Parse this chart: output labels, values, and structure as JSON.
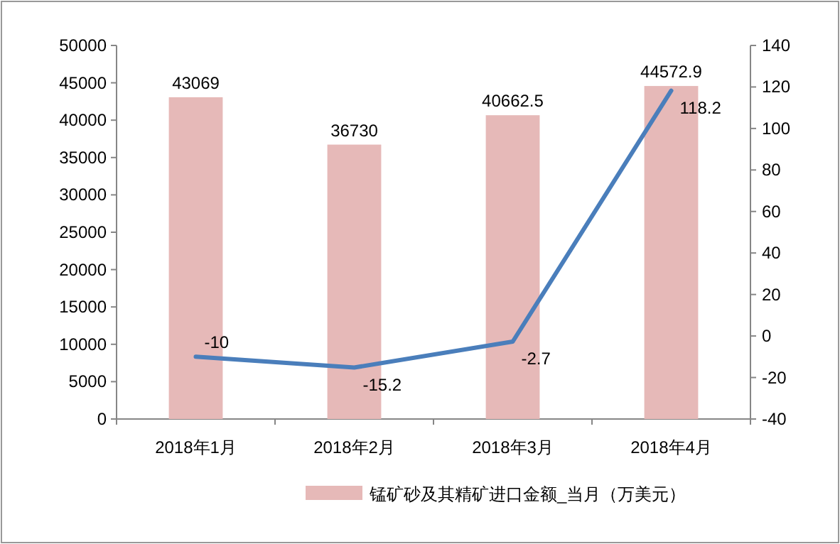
{
  "chart_data": {
    "type": "bar",
    "categories": [
      "2018年1月",
      "2018年2月",
      "2018年3月",
      "2018年4月"
    ],
    "series": [
      {
        "name": "锰矿砂及其精矿进口金额_当月（万美元）",
        "color": "#e6b9b8",
        "values": [
          43069,
          36730,
          40662.5,
          44572.9
        ]
      },
      {
        "type": "line",
        "axis": "y2",
        "color": "#4a7ebb",
        "values": [
          -10,
          -15.2,
          -2.7,
          118.2
        ]
      }
    ],
    "ylim": [
      0,
      50000
    ],
    "yticks": [
      0,
      5000,
      10000,
      15000,
      20000,
      25000,
      30000,
      35000,
      40000,
      45000,
      50000
    ],
    "y2lim": [
      -40,
      140
    ],
    "y2ticks": [
      -40,
      -20,
      0,
      20,
      40,
      60,
      80,
      100,
      120,
      140
    ],
    "data_labels": true,
    "legend": "bottom",
    "grid": false,
    "marker": "none",
    "line_style": "solid"
  }
}
